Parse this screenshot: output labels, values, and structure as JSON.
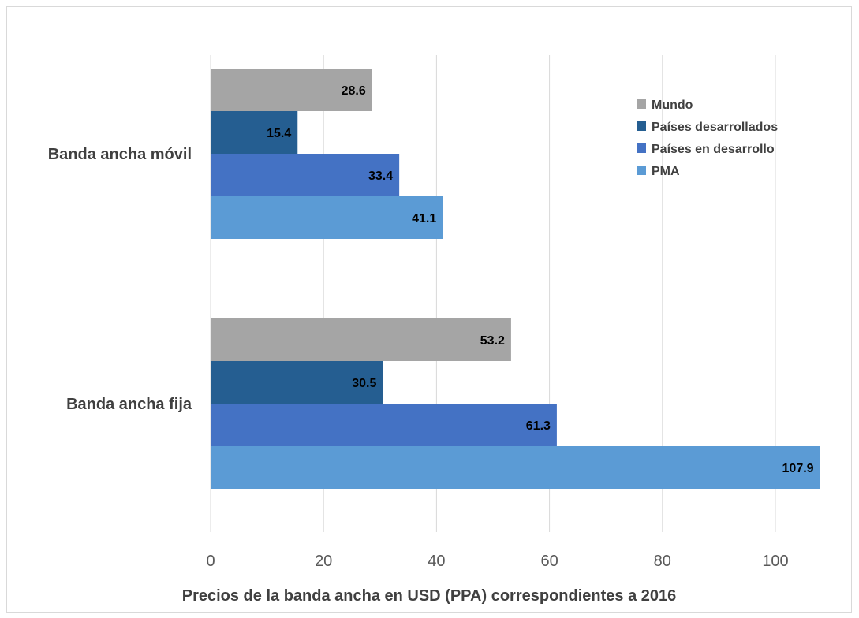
{
  "chart_data": {
    "type": "bar",
    "orientation": "horizontal",
    "categories": [
      "Banda ancha móvil",
      "Banda ancha fija"
    ],
    "series": [
      {
        "name": "Mundo",
        "color": "#a5a5a5",
        "values": [
          28.6,
          53.2
        ]
      },
      {
        "name": "Países desarrollados",
        "color": "#255e91",
        "values": [
          15.4,
          30.5
        ]
      },
      {
        "name": "Países en desarrollo",
        "color": "#4472c4",
        "values": [
          33.4,
          61.3
        ]
      },
      {
        "name": "PMA",
        "color": "#5b9bd5",
        "values": [
          41.1,
          107.9
        ]
      }
    ],
    "data_labels": [
      [
        "28.6",
        "15.4",
        "33.4",
        "41.1"
      ],
      [
        "53.2",
        "30.5",
        "61.3",
        "107.9"
      ]
    ],
    "xlabel": "Precios de la banda ancha en USD (PPA) correspondientes a 2016",
    "xlim": [
      0,
      110
    ],
    "xticks": [
      "0",
      "20",
      "40",
      "60",
      "80",
      "100"
    ],
    "grid": true,
    "legend_position": "top-right"
  }
}
